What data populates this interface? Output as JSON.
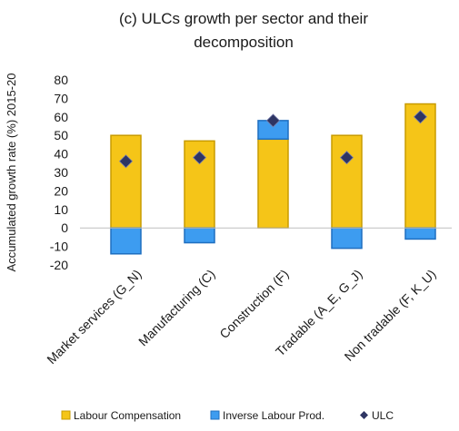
{
  "chart_data": {
    "type": "bar",
    "title": "(c) ULCs growth per sector and their decomposition",
    "ylabel": "Accumulated growth rate (%)  2015-20",
    "xlabel": "",
    "categories": [
      "Market services (G_N)",
      "Manufacturing (C)",
      "Construction (F)",
      "Tradable (A_E, G_J)",
      "Non tradable (F, K_U)"
    ],
    "series": [
      {
        "name": "Labour Compensation",
        "kind": "stacked-bar",
        "color": "#F5C518",
        "stroke": "#C89B00",
        "values": [
          50,
          47,
          48,
          50,
          67
        ]
      },
      {
        "name": "Inverse Labour Prod.",
        "kind": "stacked-bar",
        "color": "#3D9CF0",
        "stroke": "#1F6FC0",
        "values": [
          -14,
          -8,
          10,
          -11,
          -6
        ]
      },
      {
        "name": "ULC",
        "kind": "marker",
        "marker": "diamond",
        "color": "#2E3563",
        "values": [
          36,
          38,
          58,
          38,
          60
        ]
      }
    ],
    "ylim": [
      -20,
      80
    ],
    "yticks": [
      -20,
      -10,
      0,
      10,
      20,
      30,
      40,
      50,
      60,
      70,
      80
    ],
    "grid": false,
    "legend_position": "bottom"
  }
}
